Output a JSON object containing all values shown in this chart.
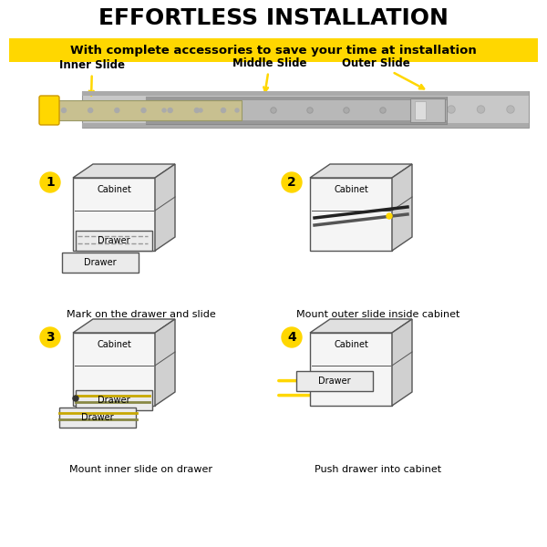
{
  "title": "EFFORTLESS INSTALLATION",
  "subtitle": "With complete accessories to save your time at installation",
  "subtitle_bg": "#FFD700",
  "bg_color": "#FFFFFF",
  "step_labels": [
    "1",
    "2",
    "3",
    "4"
  ],
  "step_captions": [
    "Mark on the drawer and slide",
    "Mount outer slide inside cabinet",
    "Mount inner slide on drawer",
    "Push drawer into cabinet"
  ],
  "slide_labels": [
    "Inner Slide",
    "Middle Slide",
    "Outer Slide"
  ],
  "arrow_color": "#FFD700",
  "step_circle_color": "#FFD700",
  "step_text_color": "#000000",
  "edge_color": "#555555",
  "cabinet_face_color": "#F5F5F5",
  "cabinet_top_color": "#E0E0E0",
  "cabinet_side_color": "#D0D0D0",
  "drawer_face_color": "#EBEBEB",
  "slide_dark_color": "#333333",
  "slide_yellow_color": "#C8A800"
}
